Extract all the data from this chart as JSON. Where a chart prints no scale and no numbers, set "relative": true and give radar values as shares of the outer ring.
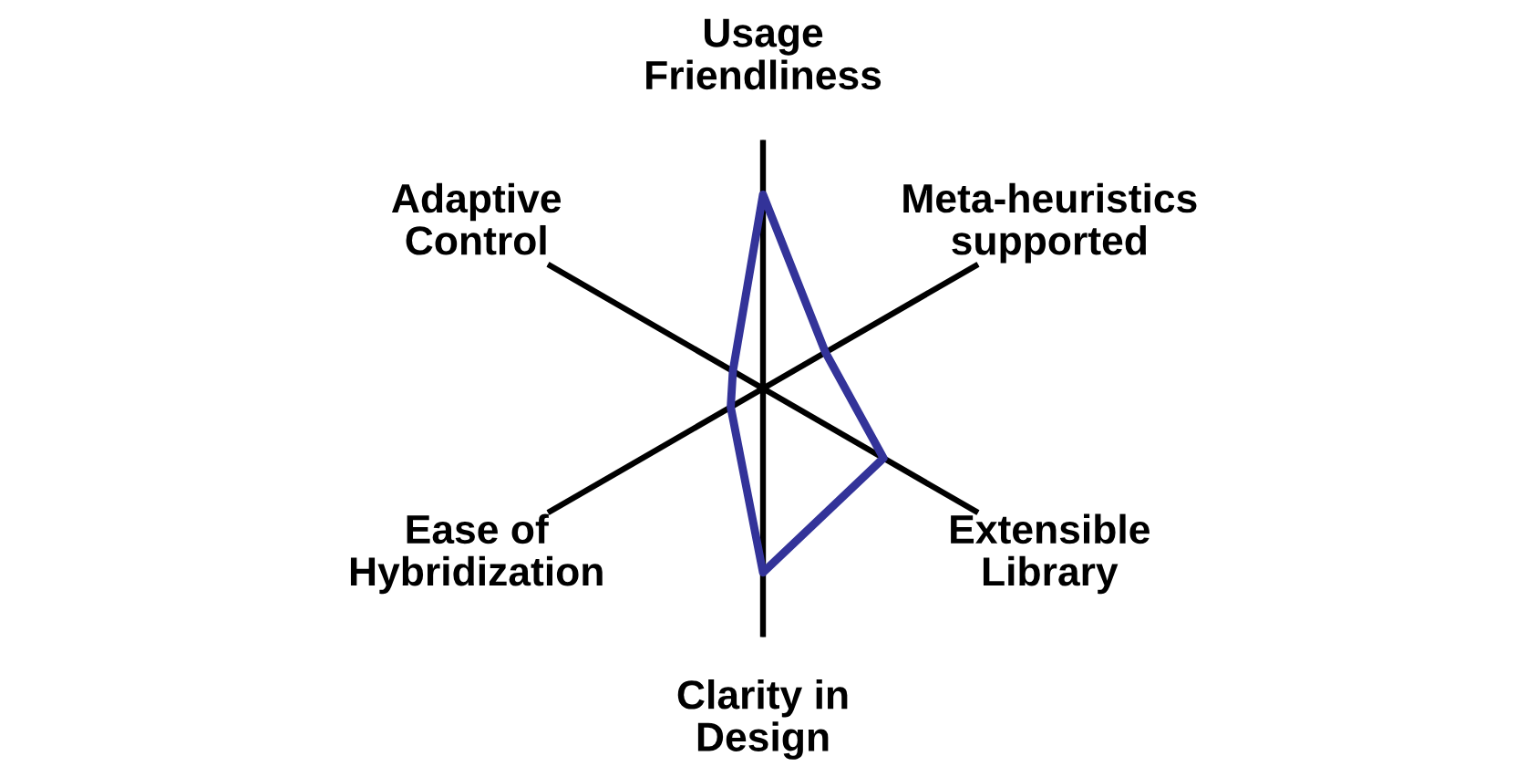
{
  "chart_data": {
    "type": "radar",
    "relative": true,
    "categories": [
      "Usage\nFriendliness",
      "Meta-heuristics\nsupported",
      "Extensible\nLibrary",
      "Clarity in\nDesign",
      "Ease of\nHybridization",
      "Adaptive\nControl"
    ],
    "series": [
      {
        "color": "#333399",
        "values": [
          0.78,
          0.29,
          0.56,
          0.74,
          0.15,
          0.14
        ]
      }
    ],
    "marker": "none",
    "line_style": "solid"
  }
}
